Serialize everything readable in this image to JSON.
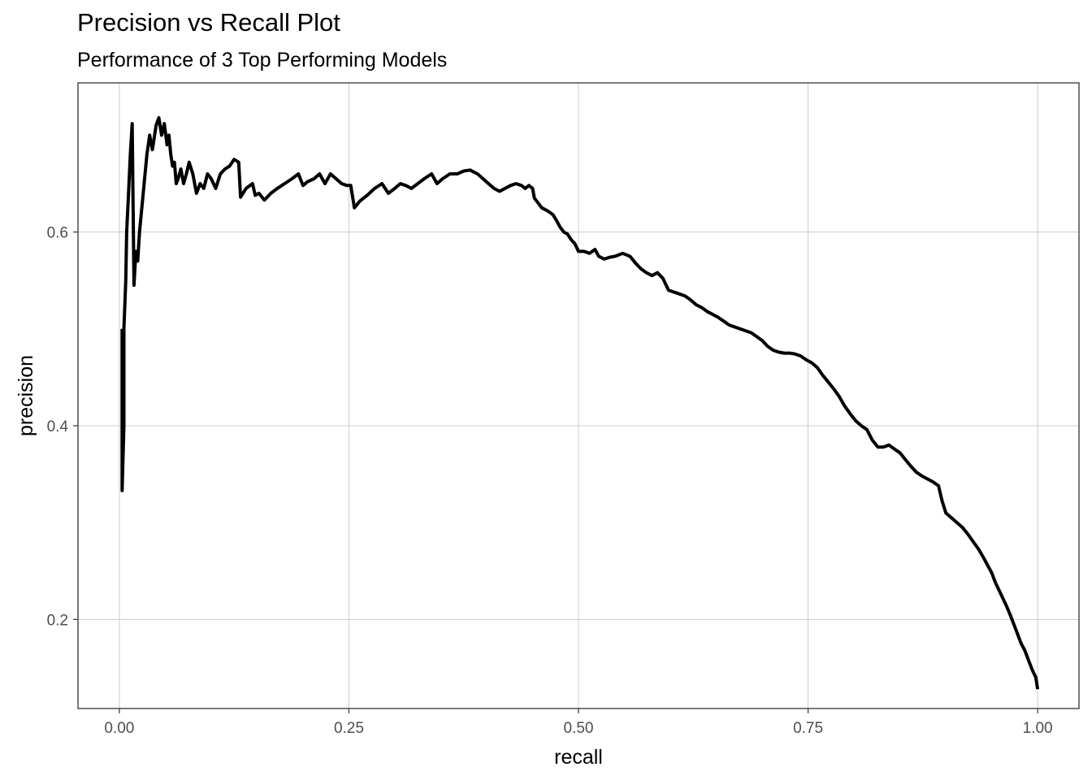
{
  "chart_data": {
    "type": "line",
    "title": "Precision vs Recall Plot",
    "subtitle": "Performance of 3 Top Performing Models",
    "xlabel": "recall",
    "ylabel": "precision",
    "xlim": [
      -0.045,
      1.045
    ],
    "ylim": [
      0.108,
      0.754
    ],
    "x_ticks": [
      0.0,
      0.25,
      0.5,
      0.75,
      1.0
    ],
    "x_tick_labels": [
      "0.00",
      "0.25",
      "0.50",
      "0.75",
      "1.00"
    ],
    "y_ticks": [
      0.2,
      0.4,
      0.6
    ],
    "y_tick_labels": [
      "0.2",
      "0.4",
      "0.6"
    ],
    "grid": true,
    "line_color": "#000000",
    "series": [
      {
        "x": [
          0.003,
          0.003,
          0.005,
          0.005,
          0.007,
          0.008,
          0.01,
          0.012,
          0.014,
          0.016,
          0.018,
          0.02,
          0.022,
          0.024,
          0.027,
          0.03,
          0.033,
          0.036,
          0.04,
          0.043,
          0.046,
          0.049,
          0.052,
          0.054,
          0.056,
          0.058,
          0.06,
          0.062,
          0.064,
          0.067,
          0.07,
          0.073,
          0.076,
          0.08,
          0.084,
          0.088,
          0.092,
          0.096,
          0.1,
          0.105,
          0.11,
          0.115,
          0.12,
          0.125,
          0.13,
          0.132,
          0.138,
          0.145,
          0.148,
          0.152,
          0.158,
          0.165,
          0.172,
          0.18,
          0.188,
          0.195,
          0.2,
          0.205,
          0.212,
          0.218,
          0.224,
          0.23,
          0.236,
          0.242,
          0.248,
          0.252,
          0.256,
          0.262,
          0.27,
          0.278,
          0.286,
          0.293,
          0.3,
          0.306,
          0.312,
          0.318,
          0.325,
          0.332,
          0.34,
          0.346,
          0.352,
          0.36,
          0.368,
          0.375,
          0.382,
          0.386,
          0.39,
          0.396,
          0.402,
          0.408,
          0.414,
          0.42,
          0.426,
          0.432,
          0.438,
          0.442,
          0.446,
          0.45,
          0.452,
          0.456,
          0.46,
          0.466,
          0.472,
          0.476,
          0.48,
          0.484,
          0.488,
          0.492,
          0.496,
          0.5,
          0.506,
          0.512,
          0.518,
          0.522,
          0.528,
          0.534,
          0.54,
          0.548,
          0.556,
          0.562,
          0.568,
          0.574,
          0.58,
          0.586,
          0.592,
          0.598,
          0.604,
          0.61,
          0.616,
          0.622,
          0.628,
          0.634,
          0.64,
          0.646,
          0.652,
          0.658,
          0.664,
          0.67,
          0.676,
          0.682,
          0.688,
          0.694,
          0.7,
          0.706,
          0.712,
          0.718,
          0.724,
          0.73,
          0.736,
          0.742,
          0.748,
          0.754,
          0.76,
          0.766,
          0.772,
          0.778,
          0.784,
          0.79,
          0.796,
          0.802,
          0.808,
          0.814,
          0.82,
          0.826,
          0.832,
          0.838,
          0.844,
          0.85,
          0.856,
          0.862,
          0.868,
          0.874,
          0.88,
          0.886,
          0.892,
          0.896,
          0.9,
          0.906,
          0.912,
          0.918,
          0.924,
          0.93,
          0.936,
          0.942,
          0.946,
          0.95,
          0.954,
          0.958,
          0.962,
          0.966,
          0.97,
          0.974,
          0.978,
          0.982,
          0.986,
          0.99,
          0.994,
          0.998,
          1.0
        ],
        "y": [
          0.5,
          0.333,
          0.4,
          0.5,
          0.55,
          0.6,
          0.64,
          0.68,
          0.712,
          0.545,
          0.58,
          0.57,
          0.6,
          0.62,
          0.65,
          0.68,
          0.7,
          0.685,
          0.71,
          0.718,
          0.7,
          0.712,
          0.69,
          0.7,
          0.68,
          0.668,
          0.672,
          0.65,
          0.655,
          0.665,
          0.65,
          0.66,
          0.672,
          0.66,
          0.64,
          0.65,
          0.645,
          0.66,
          0.655,
          0.645,
          0.66,
          0.665,
          0.668,
          0.675,
          0.672,
          0.636,
          0.645,
          0.65,
          0.638,
          0.64,
          0.633,
          0.64,
          0.645,
          0.65,
          0.655,
          0.66,
          0.648,
          0.652,
          0.655,
          0.66,
          0.65,
          0.66,
          0.655,
          0.65,
          0.648,
          0.648,
          0.625,
          0.632,
          0.638,
          0.645,
          0.65,
          0.64,
          0.645,
          0.65,
          0.648,
          0.645,
          0.65,
          0.655,
          0.66,
          0.65,
          0.655,
          0.66,
          0.66,
          0.663,
          0.664,
          0.662,
          0.66,
          0.655,
          0.65,
          0.645,
          0.642,
          0.645,
          0.648,
          0.65,
          0.648,
          0.645,
          0.648,
          0.645,
          0.635,
          0.63,
          0.625,
          0.622,
          0.618,
          0.612,
          0.605,
          0.6,
          0.598,
          0.592,
          0.588,
          0.58,
          0.58,
          0.578,
          0.582,
          0.575,
          0.572,
          0.574,
          0.575,
          0.578,
          0.575,
          0.568,
          0.562,
          0.558,
          0.555,
          0.558,
          0.552,
          0.54,
          0.538,
          0.536,
          0.534,
          0.53,
          0.525,
          0.522,
          0.518,
          0.515,
          0.512,
          0.508,
          0.504,
          0.502,
          0.5,
          0.498,
          0.496,
          0.492,
          0.488,
          0.482,
          0.478,
          0.476,
          0.475,
          0.475,
          0.474,
          0.472,
          0.468,
          0.465,
          0.46,
          0.452,
          0.445,
          0.438,
          0.43,
          0.42,
          0.412,
          0.405,
          0.4,
          0.396,
          0.385,
          0.378,
          0.378,
          0.38,
          0.376,
          0.372,
          0.365,
          0.358,
          0.352,
          0.348,
          0.345,
          0.342,
          0.338,
          0.322,
          0.31,
          0.305,
          0.3,
          0.295,
          0.288,
          0.28,
          0.272,
          0.262,
          0.255,
          0.248,
          0.238,
          0.23,
          0.222,
          0.214,
          0.205,
          0.195,
          0.185,
          0.175,
          0.168,
          0.158,
          0.148,
          0.14,
          0.128
        ]
      }
    ]
  }
}
